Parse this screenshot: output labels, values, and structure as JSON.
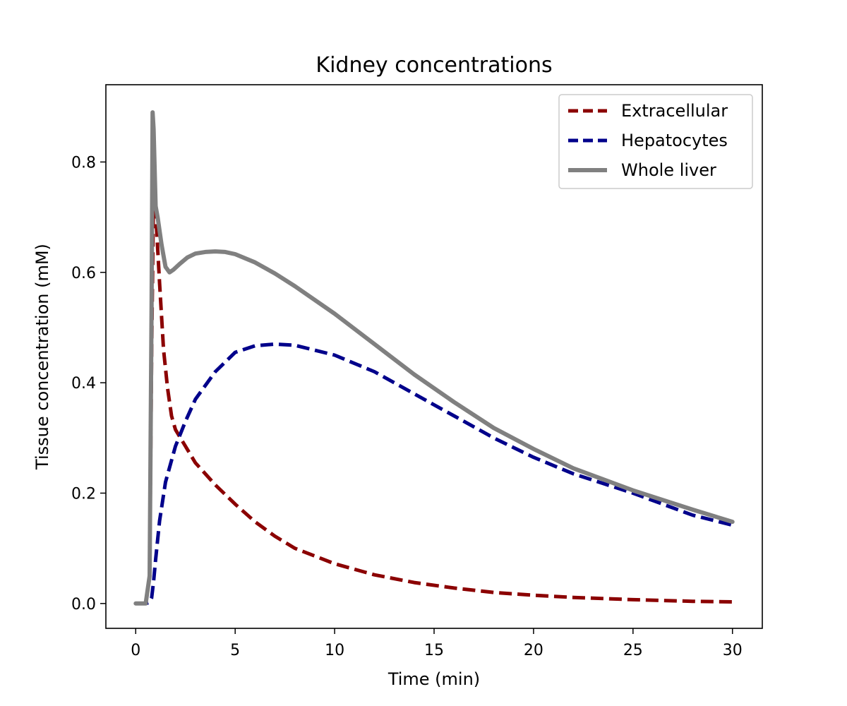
{
  "chart_data": {
    "type": "line",
    "title": "Kidney concentrations",
    "xlabel": "Time (min)",
    "ylabel": "Tissue concentration (mM)",
    "xlim": [
      -1.5,
      31.5
    ],
    "ylim": [
      -0.045,
      0.94
    ],
    "xticks": [
      0,
      5,
      10,
      15,
      20,
      25,
      30
    ],
    "yticks": [
      0.0,
      0.2,
      0.4,
      0.6,
      0.8
    ],
    "xtick_labels": [
      "0",
      "5",
      "10",
      "15",
      "20",
      "25",
      "30"
    ],
    "ytick_labels": [
      "0.0",
      "0.2",
      "0.4",
      "0.6",
      "0.8"
    ],
    "grid": false,
    "legend_position": "top-right",
    "series": [
      {
        "name": "Extracellular",
        "color": "#8b0000",
        "style": "dashed",
        "x": [
          0,
          0.5,
          0.7,
          0.8,
          0.9,
          1.0,
          1.2,
          1.4,
          1.6,
          1.8,
          2.0,
          2.5,
          3,
          4,
          5,
          6,
          7,
          8,
          10,
          12,
          14,
          16,
          18,
          20,
          22,
          25,
          28,
          30
        ],
        "y": [
          0,
          0,
          0.05,
          0.45,
          0.75,
          0.71,
          0.58,
          0.46,
          0.39,
          0.34,
          0.315,
          0.285,
          0.255,
          0.215,
          0.18,
          0.148,
          0.122,
          0.1,
          0.072,
          0.052,
          0.038,
          0.028,
          0.02,
          0.015,
          0.011,
          0.007,
          0.004,
          0.003
        ]
      },
      {
        "name": "Hepatocytes",
        "color": "#00008b",
        "style": "dashed",
        "x": [
          0,
          0.5,
          0.7,
          0.8,
          0.9,
          1.0,
          1.2,
          1.5,
          2.0,
          2.5,
          3,
          4,
          5,
          6,
          7,
          8,
          10,
          12,
          14,
          16,
          18,
          20,
          22,
          25,
          28,
          30
        ],
        "y": [
          0,
          0,
          0.002,
          0.01,
          0.04,
          0.08,
          0.15,
          0.22,
          0.285,
          0.33,
          0.37,
          0.42,
          0.455,
          0.467,
          0.47,
          0.468,
          0.45,
          0.42,
          0.38,
          0.34,
          0.3,
          0.265,
          0.235,
          0.2,
          0.16,
          0.142
        ]
      },
      {
        "name": "Whole liver",
        "color": "#808080",
        "style": "solid",
        "x": [
          0,
          0.5,
          0.7,
          0.8,
          0.85,
          0.9,
          1.0,
          1.1,
          1.3,
          1.5,
          1.7,
          1.9,
          2.2,
          2.6,
          3,
          3.5,
          4,
          4.5,
          5,
          6,
          7,
          8,
          10,
          12,
          14,
          16,
          18,
          20,
          22,
          25,
          28,
          30
        ],
        "y": [
          0,
          0,
          0.05,
          0.55,
          0.89,
          0.86,
          0.72,
          0.7,
          0.65,
          0.61,
          0.6,
          0.605,
          0.615,
          0.627,
          0.634,
          0.637,
          0.638,
          0.637,
          0.633,
          0.618,
          0.598,
          0.575,
          0.525,
          0.47,
          0.415,
          0.365,
          0.318,
          0.28,
          0.245,
          0.205,
          0.17,
          0.148
        ]
      }
    ]
  }
}
